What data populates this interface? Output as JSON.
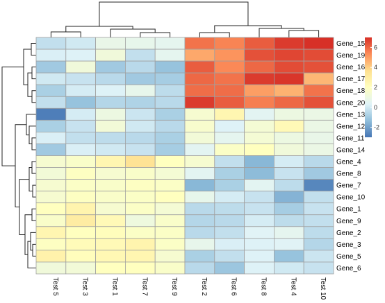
{
  "chart_data": {
    "type": "heatmap",
    "title": "",
    "columns": [
      "Test 5",
      "Test 3",
      "Test 1",
      "Test 7",
      "Test 9",
      "Test 2",
      "Test 6",
      "Test 8",
      "Test 4",
      "Test 10"
    ],
    "rows": [
      "Gene_15",
      "Gene_19",
      "Gene_16",
      "Gene_17",
      "Gene_18",
      "Gene_20",
      "Gene_13",
      "Gene_12",
      "Gene_11",
      "Gene_14",
      "Gene_4",
      "Gene_8",
      "Gene_7",
      "Gene_10",
      "Gene_1",
      "Gene_9",
      "Gene_2",
      "Gene_3",
      "Gene_5",
      "Gene_6"
    ],
    "values": [
      [
        -0.3,
        0.0,
        0.8,
        0.7,
        0.6,
        5.8,
        5.5,
        6.2,
        6.8,
        7.0
      ],
      [
        0.2,
        0.3,
        1.2,
        -0.3,
        0.6,
        4.8,
        5.2,
        6.4,
        6.6,
        6.5
      ],
      [
        -1.0,
        1.2,
        -1.0,
        -0.5,
        -1.2,
        6.2,
        5.4,
        6.0,
        6.5,
        6.4
      ],
      [
        0.0,
        -0.2,
        -0.5,
        -1.0,
        -0.9,
        6.0,
        5.8,
        6.8,
        6.9,
        4.5
      ],
      [
        -0.8,
        0.1,
        0.3,
        0.7,
        -0.4,
        5.9,
        5.9,
        5.0,
        4.6,
        5.8
      ],
      [
        -0.3,
        -1.2,
        -0.6,
        -0.7,
        -0.5,
        6.8,
        6.2,
        5.6,
        6.0,
        6.4
      ],
      [
        -2.8,
        0.1,
        1.0,
        -0.1,
        -0.8,
        1.5,
        2.5,
        0.5,
        1.0,
        0.9
      ],
      [
        -0.8,
        -0.2,
        1.3,
        0.0,
        -0.5,
        1.6,
        0.3,
        1.4,
        2.3,
        0.9
      ],
      [
        0.2,
        -0.3,
        -0.4,
        -0.5,
        -0.8,
        1.3,
        0.6,
        1.4,
        1.0,
        0.8
      ],
      [
        -1.0,
        0.2,
        0.0,
        -0.2,
        -0.9,
        0.5,
        1.8,
        2.0,
        1.2,
        0.9
      ],
      [
        1.5,
        1.7,
        2.5,
        3.5,
        2.0,
        1.5,
        -0.3,
        -1.5,
        0.1,
        -0.5
      ],
      [
        1.3,
        1.9,
        1.5,
        1.7,
        1.4,
        0.5,
        -0.8,
        -1.4,
        -0.2,
        -1.0
      ],
      [
        1.5,
        1.8,
        1.7,
        1.9,
        1.8,
        -1.5,
        -0.8,
        0.5,
        -0.4,
        -2.6
      ],
      [
        1.5,
        1.9,
        1.7,
        1.8,
        2.0,
        0.7,
        0.1,
        -0.2,
        -1.6,
        -0.3
      ],
      [
        2.0,
        2.6,
        1.5,
        1.8,
        1.4,
        -0.5,
        -0.4,
        -0.2,
        -0.9,
        -0.2
      ],
      [
        1.7,
        3.0,
        2.3,
        1.1,
        1.7,
        -0.6,
        -0.5,
        0.1,
        -0.4,
        -0.3
      ],
      [
        2.5,
        2.0,
        2.1,
        1.8,
        1.8,
        -0.5,
        -0.3,
        0.4,
        0.6,
        -0.4
      ],
      [
        1.9,
        2.2,
        2.3,
        2.6,
        1.8,
        0.7,
        0.2,
        0.3,
        0.4,
        -0.6
      ],
      [
        2.7,
        2.1,
        2.4,
        2.5,
        1.5,
        -0.8,
        -0.3,
        0.3,
        -1.2,
        -0.1
      ],
      [
        1.2,
        1.3,
        2.0,
        2.0,
        1.7,
        -0.5,
        -1.1,
        0.3,
        0.0,
        -0.2
      ]
    ],
    "color_scale": {
      "stops": [
        "#4575b4",
        "#91bfdb",
        "#e0f3f8",
        "#ffffbf",
        "#fee090",
        "#fc8d59",
        "#d73027"
      ],
      "domain": [
        -3,
        7
      ]
    },
    "legend": {
      "position": "right",
      "ticks": [
        -2,
        0,
        2,
        4,
        6
      ]
    },
    "row_dendrogram": true,
    "column_dendrogram": true,
    "cell_border_color": "#a0a0a0"
  }
}
